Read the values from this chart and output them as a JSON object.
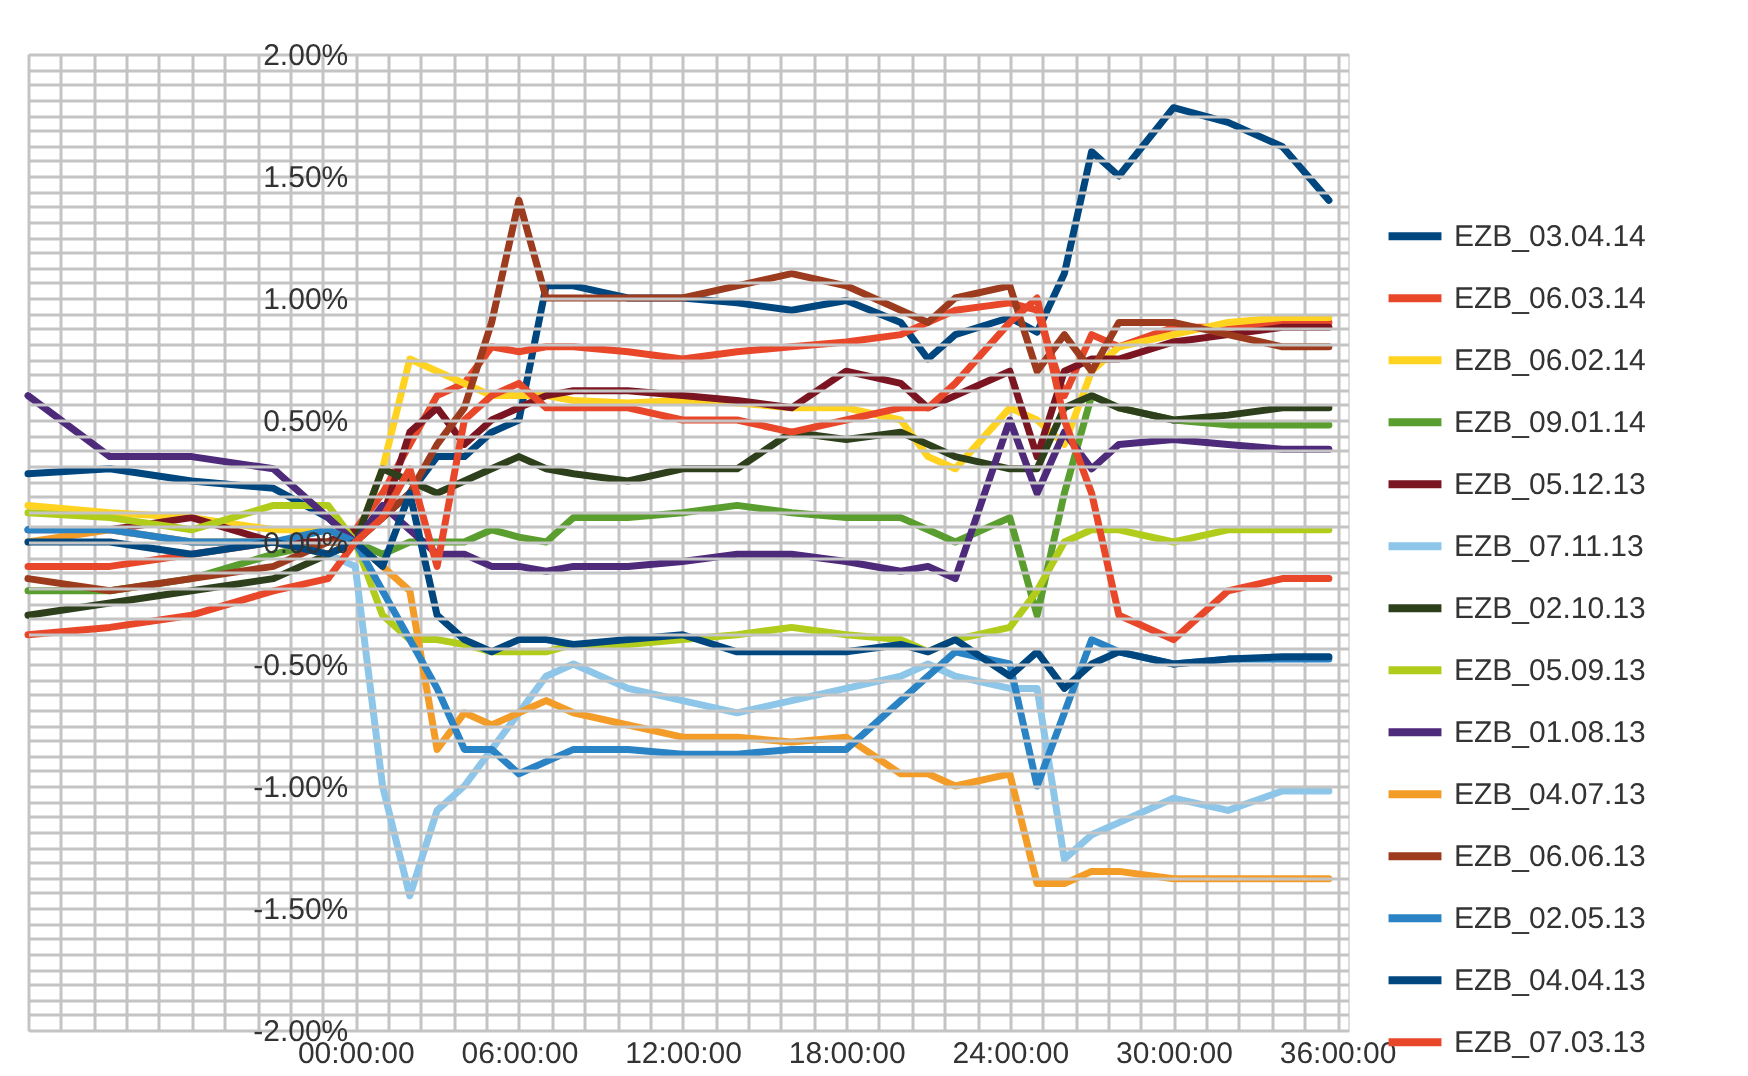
{
  "chart_data": {
    "type": "line",
    "x": [
      -12,
      -9,
      -6,
      -3,
      -1,
      0,
      1,
      2,
      3,
      4,
      5,
      6,
      7,
      8,
      10,
      12,
      14,
      16,
      18,
      20,
      21,
      22,
      24,
      25,
      26,
      27,
      28,
      30,
      32,
      34,
      35.7
    ],
    "xlim": [
      -12,
      36.4
    ],
    "ylim": [
      -2,
      2
    ],
    "xticks": [
      {
        "value": -12,
        "label": null
      },
      {
        "value": -10.8,
        "label": null
      },
      {
        "value": -9.6,
        "label": null
      },
      {
        "value": -8.4,
        "label": null
      },
      {
        "value": -7.2,
        "label": null
      },
      {
        "value": -6,
        "label": null
      },
      {
        "value": -4.8,
        "label": null
      },
      {
        "value": -3.6,
        "label": null
      },
      {
        "value": -2.4,
        "label": null
      },
      {
        "value": -1.2,
        "label": null
      },
      {
        "value": 0,
        "label": "00:00:00"
      },
      {
        "value": 1.2,
        "label": null
      },
      {
        "value": 2.4,
        "label": null
      },
      {
        "value": 3.6,
        "label": null
      },
      {
        "value": 4.8,
        "label": null
      },
      {
        "value": 6,
        "label": "06:00:00"
      },
      {
        "value": 7.2,
        "label": null
      },
      {
        "value": 8.4,
        "label": null
      },
      {
        "value": 9.6,
        "label": null
      },
      {
        "value": 10.8,
        "label": null
      },
      {
        "value": 12,
        "label": "12:00:00"
      },
      {
        "value": 13.2,
        "label": null
      },
      {
        "value": 14.4,
        "label": null
      },
      {
        "value": 15.6,
        "label": null
      },
      {
        "value": 16.8,
        "label": null
      },
      {
        "value": 18,
        "label": "18:00:00"
      },
      {
        "value": 19.2,
        "label": null
      },
      {
        "value": 20.4,
        "label": null
      },
      {
        "value": 21.6,
        "label": null
      },
      {
        "value": 22.8,
        "label": null
      },
      {
        "value": 24,
        "label": "24:00:00"
      },
      {
        "value": 25.2,
        "label": null
      },
      {
        "value": 26.4,
        "label": null
      },
      {
        "value": 27.6,
        "label": null
      },
      {
        "value": 28.8,
        "label": null
      },
      {
        "value": 30,
        "label": "30:00:00"
      },
      {
        "value": 31.2,
        "label": null
      },
      {
        "value": 32.4,
        "label": null
      },
      {
        "value": 33.6,
        "label": null
      },
      {
        "value": 34.8,
        "label": null
      },
      {
        "value": 36,
        "label": "36:00:00"
      }
    ],
    "yticks": [
      {
        "value": -2,
        "label": "-2.00%"
      },
      {
        "value": -1.9375,
        "label": null
      },
      {
        "value": -1.875,
        "label": null
      },
      {
        "value": -1.8125,
        "label": null
      },
      {
        "value": -1.75,
        "label": null
      },
      {
        "value": -1.6875,
        "label": null
      },
      {
        "value": -1.625,
        "label": null
      },
      {
        "value": -1.5625,
        "label": null
      },
      {
        "value": -1.5,
        "label": "-1.50%"
      },
      {
        "value": -1.4375,
        "label": null
      },
      {
        "value": -1.375,
        "label": null
      },
      {
        "value": -1.3125,
        "label": null
      },
      {
        "value": -1.25,
        "label": null
      },
      {
        "value": -1.1875,
        "label": null
      },
      {
        "value": -1.125,
        "label": null
      },
      {
        "value": -1.0625,
        "label": null
      },
      {
        "value": -1,
        "label": "-1.00%"
      },
      {
        "value": -0.9375,
        "label": null
      },
      {
        "value": -0.875,
        "label": null
      },
      {
        "value": -0.8125,
        "label": null
      },
      {
        "value": -0.75,
        "label": null
      },
      {
        "value": -0.6875,
        "label": null
      },
      {
        "value": -0.625,
        "label": null
      },
      {
        "value": -0.5625,
        "label": null
      },
      {
        "value": -0.5,
        "label": "-0.50%"
      },
      {
        "value": -0.4375,
        "label": null
      },
      {
        "value": -0.375,
        "label": null
      },
      {
        "value": -0.3125,
        "label": null
      },
      {
        "value": -0.25,
        "label": null
      },
      {
        "value": -0.1875,
        "label": null
      },
      {
        "value": -0.125,
        "label": null
      },
      {
        "value": -0.0625,
        "label": null
      },
      {
        "value": 0,
        "label": "0.00%"
      },
      {
        "value": 0.0625,
        "label": null
      },
      {
        "value": 0.125,
        "label": null
      },
      {
        "value": 0.1875,
        "label": null
      },
      {
        "value": 0.25,
        "label": null
      },
      {
        "value": 0.3125,
        "label": null
      },
      {
        "value": 0.375,
        "label": null
      },
      {
        "value": 0.4375,
        "label": null
      },
      {
        "value": 0.5,
        "label": "0.50%"
      },
      {
        "value": 0.5625,
        "label": null
      },
      {
        "value": 0.625,
        "label": null
      },
      {
        "value": 0.6875,
        "label": null
      },
      {
        "value": 0.75,
        "label": null
      },
      {
        "value": 0.8125,
        "label": null
      },
      {
        "value": 0.875,
        "label": null
      },
      {
        "value": 0.9375,
        "label": null
      },
      {
        "value": 1,
        "label": "1.00%"
      },
      {
        "value": 1.0625,
        "label": null
      },
      {
        "value": 1.125,
        "label": null
      },
      {
        "value": 1.1875,
        "label": null
      },
      {
        "value": 1.25,
        "label": null
      },
      {
        "value": 1.3125,
        "label": null
      },
      {
        "value": 1.375,
        "label": null
      },
      {
        "value": 1.4375,
        "label": null
      },
      {
        "value": 1.5,
        "label": "1.50%"
      },
      {
        "value": 1.5625,
        "label": null
      },
      {
        "value": 1.625,
        "label": null
      },
      {
        "value": 1.6875,
        "label": null
      },
      {
        "value": 1.75,
        "label": null
      },
      {
        "value": 1.8125,
        "label": null
      },
      {
        "value": 1.875,
        "label": null
      },
      {
        "value": 1.9375,
        "label": null
      },
      {
        "value": 2,
        "label": "2.00%"
      }
    ],
    "grid": true,
    "legend": "right",
    "series": [
      {
        "name": "EZB_03.04.14",
        "color": "#00467f",
        "values": [
          0.28,
          0.3,
          0.25,
          0.22,
          0.1,
          0.0,
          0.1,
          0.2,
          0.35,
          0.35,
          0.45,
          0.5,
          1.05,
          1.05,
          1.0,
          1.0,
          0.98,
          0.95,
          0.99,
          0.9,
          0.75,
          0.85,
          0.92,
          0.86,
          1.1,
          1.6,
          1.5,
          1.78,
          1.72,
          1.62,
          1.4
        ]
      },
      {
        "name": "EZB_06.03.14",
        "color": "#e8472a",
        "values": [
          -0.1,
          -0.1,
          -0.05,
          0.0,
          0.0,
          0.05,
          0.2,
          0.4,
          0.6,
          0.65,
          0.8,
          0.78,
          0.8,
          0.8,
          0.78,
          0.75,
          0.78,
          0.8,
          0.82,
          0.85,
          0.9,
          0.95,
          0.98,
          0.95,
          0.6,
          0.85,
          0.8,
          0.88,
          0.88,
          0.9,
          0.9
        ]
      },
      {
        "name": "EZB_06.02.14",
        "color": "#ffd320",
        "values": [
          0.15,
          0.12,
          0.1,
          0.05,
          0.05,
          0.0,
          0.3,
          0.75,
          0.7,
          0.65,
          0.6,
          0.6,
          0.6,
          0.58,
          0.57,
          0.58,
          0.57,
          0.55,
          0.55,
          0.5,
          0.35,
          0.3,
          0.55,
          0.5,
          0.4,
          0.7,
          0.8,
          0.85,
          0.9,
          0.92,
          0.92
        ]
      },
      {
        "name": "EZB_09.01.14",
        "color": "#5a9e2f",
        "values": [
          -0.2,
          -0.2,
          -0.15,
          -0.05,
          0.0,
          0.0,
          -0.05,
          0.0,
          0.0,
          0.0,
          0.05,
          0.02,
          0.0,
          0.1,
          0.1,
          0.12,
          0.15,
          0.12,
          0.1,
          0.1,
          0.05,
          0.0,
          0.1,
          -0.3,
          0.2,
          0.6,
          0.55,
          0.5,
          0.48,
          0.48,
          0.48
        ]
      },
      {
        "name": "EZB_05.12.13",
        "color": "#7b1521",
        "values": [
          0.05,
          0.05,
          0.1,
          0.0,
          0.0,
          0.05,
          0.1,
          0.45,
          0.55,
          0.4,
          0.5,
          0.55,
          0.6,
          0.62,
          0.62,
          0.6,
          0.58,
          0.55,
          0.7,
          0.65,
          0.55,
          0.6,
          0.7,
          0.35,
          0.7,
          0.75,
          0.75,
          0.82,
          0.85,
          0.88,
          0.88
        ]
      },
      {
        "name": "EZB_07.11.13",
        "color": "#8dc6e8",
        "values": [
          0.05,
          0.05,
          0.0,
          0.0,
          -0.05,
          -0.1,
          -1.0,
          -1.45,
          -1.1,
          -1.0,
          -0.85,
          -0.7,
          -0.55,
          -0.5,
          -0.6,
          -0.65,
          -0.7,
          -0.65,
          -0.6,
          -0.55,
          -0.5,
          -0.55,
          -0.6,
          -0.6,
          -1.3,
          -1.2,
          -1.15,
          -1.05,
          -1.1,
          -1.02,
          -1.02
        ]
      },
      {
        "name": "EZB_02.10.13",
        "color": "#2e3f1c",
        "values": [
          -0.3,
          -0.25,
          -0.2,
          -0.15,
          -0.05,
          0.0,
          0.3,
          0.25,
          0.2,
          0.25,
          0.3,
          0.35,
          0.3,
          0.28,
          0.25,
          0.3,
          0.3,
          0.45,
          0.42,
          0.45,
          0.4,
          0.35,
          0.3,
          0.3,
          0.55,
          0.6,
          0.55,
          0.5,
          0.52,
          0.55,
          0.55
        ]
      },
      {
        "name": "EZB_05.09.13",
        "color": "#b2cc1c",
        "values": [
          0.12,
          0.1,
          0.05,
          0.15,
          0.15,
          0.0,
          -0.3,
          -0.4,
          -0.4,
          -0.42,
          -0.45,
          -0.45,
          -0.45,
          -0.42,
          -0.42,
          -0.4,
          -0.38,
          -0.35,
          -0.38,
          -0.4,
          -0.45,
          -0.4,
          -0.35,
          -0.2,
          0.0,
          0.05,
          0.05,
          0.0,
          0.05,
          0.05,
          0.05
        ]
      },
      {
        "name": "EZB_01.08.13",
        "color": "#4e2a7b",
        "values": [
          0.6,
          0.35,
          0.35,
          0.3,
          0.1,
          0.0,
          0.15,
          0.05,
          -0.05,
          -0.05,
          -0.1,
          -0.1,
          -0.12,
          -0.1,
          -0.1,
          -0.08,
          -0.05,
          -0.05,
          -0.08,
          -0.12,
          -0.1,
          -0.15,
          0.5,
          0.2,
          0.45,
          0.3,
          0.4,
          0.42,
          0.4,
          0.38,
          0.38
        ]
      },
      {
        "name": "EZB_04.07.13",
        "color": "#f39c28",
        "values": [
          0.0,
          0.05,
          0.0,
          0.0,
          -0.05,
          0.0,
          -0.1,
          -0.2,
          -0.85,
          -0.7,
          -0.75,
          -0.7,
          -0.65,
          -0.7,
          -0.75,
          -0.8,
          -0.8,
          -0.82,
          -0.8,
          -0.95,
          -0.95,
          -1.0,
          -0.95,
          -1.4,
          -1.4,
          -1.35,
          -1.35,
          -1.38,
          -1.38,
          -1.38,
          -1.38
        ]
      },
      {
        "name": "EZB_06.06.13",
        "color": "#9c3b1d",
        "values": [
          -0.15,
          -0.2,
          -0.15,
          -0.1,
          0.0,
          0.0,
          0.1,
          0.2,
          0.4,
          0.55,
          0.9,
          1.4,
          1.0,
          1.0,
          1.0,
          1.0,
          1.05,
          1.1,
          1.05,
          0.95,
          0.9,
          1.0,
          1.05,
          0.7,
          0.85,
          0.7,
          0.9,
          0.9,
          0.85,
          0.8,
          0.8
        ]
      },
      {
        "name": "EZB_02.05.13",
        "color": "#2a83c5",
        "values": [
          0.05,
          0.05,
          0.0,
          0.0,
          0.05,
          0.0,
          -0.2,
          -0.4,
          -0.6,
          -0.85,
          -0.85,
          -0.95,
          -0.9,
          -0.85,
          -0.85,
          -0.87,
          -0.87,
          -0.85,
          -0.85,
          -0.65,
          -0.55,
          -0.45,
          -0.5,
          -1.0,
          -0.7,
          -0.4,
          -0.45,
          -0.5,
          -0.48,
          -0.48,
          -0.48
        ]
      },
      {
        "name": "EZB_04.04.13",
        "color": "#00467f",
        "values": [
          0.0,
          0.0,
          -0.05,
          0.0,
          -0.05,
          0.0,
          -0.1,
          0.2,
          -0.3,
          -0.4,
          -0.45,
          -0.4,
          -0.4,
          -0.42,
          -0.4,
          -0.38,
          -0.45,
          -0.45,
          -0.45,
          -0.42,
          -0.45,
          -0.4,
          -0.55,
          -0.45,
          -0.6,
          -0.5,
          -0.45,
          -0.5,
          -0.48,
          -0.47,
          -0.47
        ]
      },
      {
        "name": "EZB_07.03.13",
        "color": "#e8472a",
        "values": [
          -0.38,
          -0.35,
          -0.3,
          -0.2,
          -0.15,
          0.0,
          0.1,
          0.3,
          -0.1,
          0.5,
          0.6,
          0.65,
          0.55,
          0.55,
          0.55,
          0.5,
          0.5,
          0.45,
          0.5,
          0.55,
          0.55,
          0.65,
          0.9,
          1.0,
          0.5,
          0.2,
          -0.3,
          -0.4,
          -0.2,
          -0.15,
          -0.15
        ]
      }
    ]
  }
}
